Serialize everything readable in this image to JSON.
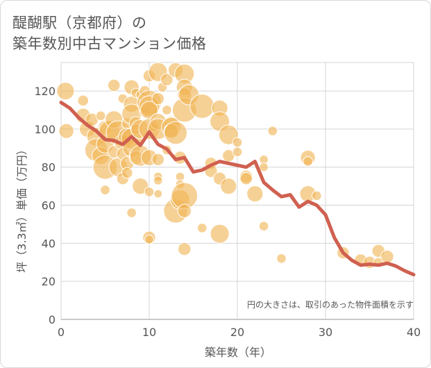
{
  "title": {
    "line1": "醍醐駅（京都府）の",
    "line2": "築年数別中古マンション価格"
  },
  "chart_data": {
    "type": "scatter",
    "xlabel": "築年数（年）",
    "ylabel": "坪（3.3㎡）単価（万円）",
    "xlim": [
      0,
      40
    ],
    "ylim": [
      0,
      135
    ],
    "xticks": [
      "0",
      "10",
      "20",
      "30",
      "40"
    ],
    "yticks": [
      "0",
      "20",
      "40",
      "60",
      "80",
      "100",
      "120"
    ],
    "grid": true,
    "note": "円の大きさは、取引のあった物件面積を示す",
    "colors": {
      "bubble": "#f0b455",
      "line": "#d06050"
    },
    "points": [
      {
        "x": 0.5,
        "y": 120,
        "s": 2
      },
      {
        "x": 0.6,
        "y": 99,
        "s": 1.6
      },
      {
        "x": 2.5,
        "y": 115,
        "s": 1
      },
      {
        "x": 2.5,
        "y": 107,
        "s": 1.6
      },
      {
        "x": 3,
        "y": 100,
        "s": 1.8
      },
      {
        "x": 3.5,
        "y": 105,
        "s": 1.3
      },
      {
        "x": 4,
        "y": 96,
        "s": 2.2
      },
      {
        "x": 4,
        "y": 89,
        "s": 2.8
      },
      {
        "x": 4.5,
        "y": 107,
        "s": 0.8
      },
      {
        "x": 4.5,
        "y": 86,
        "s": 2
      },
      {
        "x": 5,
        "y": 80,
        "s": 3
      },
      {
        "x": 5,
        "y": 68,
        "s": 0.8
      },
      {
        "x": 5,
        "y": 101,
        "s": 1.4
      },
      {
        "x": 5,
        "y": 92,
        "s": 2
      },
      {
        "x": 5.5,
        "y": 99,
        "s": 2.5
      },
      {
        "x": 6,
        "y": 123,
        "s": 1.2
      },
      {
        "x": 6,
        "y": 105,
        "s": 2
      },
      {
        "x": 6,
        "y": 88,
        "s": 1.2
      },
      {
        "x": 6.5,
        "y": 98,
        "s": 3
      },
      {
        "x": 6.5,
        "y": 80,
        "s": 2.2
      },
      {
        "x": 7,
        "y": 116,
        "s": 0.8
      },
      {
        "x": 7,
        "y": 93,
        "s": 1.8
      },
      {
        "x": 7,
        "y": 87,
        "s": 1.2
      },
      {
        "x": 7,
        "y": 74,
        "s": 1.2
      },
      {
        "x": 7.5,
        "y": 103,
        "s": 1
      },
      {
        "x": 7.5,
        "y": 96,
        "s": 2
      },
      {
        "x": 7.5,
        "y": 82,
        "s": 1.4
      },
      {
        "x": 7.5,
        "y": 77,
        "s": 1
      },
      {
        "x": 8,
        "y": 122,
        "s": 1.6
      },
      {
        "x": 8,
        "y": 113,
        "s": 1.8
      },
      {
        "x": 8,
        "y": 108,
        "s": 2.3
      },
      {
        "x": 8,
        "y": 95,
        "s": 2.5
      },
      {
        "x": 8,
        "y": 90,
        "s": 2
      },
      {
        "x": 8,
        "y": 56,
        "s": 0.8
      },
      {
        "x": 8.5,
        "y": 119,
        "s": 0.8
      },
      {
        "x": 8.5,
        "y": 103,
        "s": 1.4
      },
      {
        "x": 8.5,
        "y": 100,
        "s": 1
      },
      {
        "x": 8.5,
        "y": 85,
        "s": 1.4
      },
      {
        "x": 9,
        "y": 118,
        "s": 0.7
      },
      {
        "x": 9,
        "y": 100,
        "s": 2.2
      },
      {
        "x": 9,
        "y": 86,
        "s": 2.5
      },
      {
        "x": 9,
        "y": 70,
        "s": 1.8
      },
      {
        "x": 9.5,
        "y": 120,
        "s": 1
      },
      {
        "x": 9.5,
        "y": 109,
        "s": 1
      },
      {
        "x": 10,
        "y": 128,
        "s": 1.2
      },
      {
        "x": 10,
        "y": 114,
        "s": 3
      },
      {
        "x": 10,
        "y": 112,
        "s": 2.5
      },
      {
        "x": 10,
        "y": 110,
        "s": 2
      },
      {
        "x": 10,
        "y": 100,
        "s": 2.5
      },
      {
        "x": 10,
        "y": 85,
        "s": 1.8
      },
      {
        "x": 10,
        "y": 67,
        "s": 0.8
      },
      {
        "x": 10,
        "y": 43,
        "s": 1.3
      },
      {
        "x": 10,
        "y": 42,
        "s": 0.7
      },
      {
        "x": 10.5,
        "y": 101,
        "s": 0.8
      },
      {
        "x": 11,
        "y": 130,
        "s": 2.2
      },
      {
        "x": 11,
        "y": 116,
        "s": 1.2
      },
      {
        "x": 11,
        "y": 104,
        "s": 1.8
      },
      {
        "x": 11,
        "y": 100,
        "s": 2.5
      },
      {
        "x": 11,
        "y": 84,
        "s": 1.2
      },
      {
        "x": 11,
        "y": 75,
        "s": 0.7
      },
      {
        "x": 11,
        "y": 73,
        "s": 0.7
      },
      {
        "x": 11,
        "y": 66,
        "s": 0.6
      },
      {
        "x": 11.5,
        "y": 122,
        "s": 0.8
      },
      {
        "x": 12,
        "y": 126,
        "s": 1.2
      },
      {
        "x": 12,
        "y": 110,
        "s": 0.8
      },
      {
        "x": 12,
        "y": 89,
        "s": 0.8
      },
      {
        "x": 12.5,
        "y": 103,
        "s": 1.5
      },
      {
        "x": 12.5,
        "y": 101,
        "s": 2.3
      },
      {
        "x": 12.5,
        "y": 99,
        "s": 1.6
      },
      {
        "x": 13,
        "y": 131,
        "s": 1.6
      },
      {
        "x": 13,
        "y": 98,
        "s": 2.8
      },
      {
        "x": 13,
        "y": 57,
        "s": 3
      },
      {
        "x": 13.5,
        "y": 85,
        "s": 1.3
      },
      {
        "x": 13.5,
        "y": 75,
        "s": 0.7
      },
      {
        "x": 13.5,
        "y": 71,
        "s": 0.7
      },
      {
        "x": 13.5,
        "y": 63,
        "s": 2.3
      },
      {
        "x": 14,
        "y": 129,
        "s": 2.3
      },
      {
        "x": 14,
        "y": 122,
        "s": 1.8
      },
      {
        "x": 14,
        "y": 118,
        "s": 1.5
      },
      {
        "x": 14,
        "y": 110,
        "s": 3
      },
      {
        "x": 14,
        "y": 65,
        "s": 3.3
      },
      {
        "x": 14,
        "y": 57,
        "s": 1.4
      },
      {
        "x": 14,
        "y": 37,
        "s": 1.3
      },
      {
        "x": 14.5,
        "y": 118,
        "s": 2.4
      },
      {
        "x": 16,
        "y": 112,
        "s": 3
      },
      {
        "x": 16,
        "y": 48,
        "s": 0.8
      },
      {
        "x": 17,
        "y": 82,
        "s": 1.2
      },
      {
        "x": 17,
        "y": 78,
        "s": 1.3
      },
      {
        "x": 18,
        "y": 111,
        "s": 1.8
      },
      {
        "x": 18,
        "y": 104,
        "s": 2.3
      },
      {
        "x": 18,
        "y": 74,
        "s": 1.3
      },
      {
        "x": 18,
        "y": 45,
        "s": 2.2
      },
      {
        "x": 19,
        "y": 97,
        "s": 2.3
      },
      {
        "x": 19,
        "y": 86,
        "s": 1.2
      },
      {
        "x": 19,
        "y": 70,
        "s": 1.8
      },
      {
        "x": 20,
        "y": 93,
        "s": 0.8
      },
      {
        "x": 20,
        "y": 88,
        "s": 0.8
      },
      {
        "x": 21,
        "y": 75,
        "s": 1.3
      },
      {
        "x": 21,
        "y": 74,
        "s": 1.2
      },
      {
        "x": 22,
        "y": 66,
        "s": 1.8
      },
      {
        "x": 23,
        "y": 84,
        "s": 0.7
      },
      {
        "x": 23,
        "y": 80,
        "s": 0.7
      },
      {
        "x": 23,
        "y": 49,
        "s": 0.8
      },
      {
        "x": 24,
        "y": 99,
        "s": 0.8
      },
      {
        "x": 25,
        "y": 32,
        "s": 0.8
      },
      {
        "x": 28,
        "y": 85,
        "s": 1.6
      },
      {
        "x": 28,
        "y": 83,
        "s": 0.8
      },
      {
        "x": 28,
        "y": 66,
        "s": 1.8
      },
      {
        "x": 29,
        "y": 65,
        "s": 0.8
      },
      {
        "x": 32,
        "y": 35,
        "s": 1.2
      },
      {
        "x": 34,
        "y": 31,
        "s": 1.3
      },
      {
        "x": 35,
        "y": 30,
        "s": 1.2
      },
      {
        "x": 36,
        "y": 36,
        "s": 1.3
      },
      {
        "x": 36,
        "y": 30,
        "s": 0.8
      },
      {
        "x": 37,
        "y": 33,
        "s": 1.3
      }
    ],
    "trend": [
      [
        0,
        114
      ],
      [
        1,
        111
      ],
      [
        2,
        106
      ],
      [
        3,
        102
      ],
      [
        4,
        99
      ],
      [
        5,
        94.5
      ],
      [
        6,
        94
      ],
      [
        7,
        92
      ],
      [
        8,
        96
      ],
      [
        9,
        91.5
      ],
      [
        10,
        98.5
      ],
      [
        11,
        92
      ],
      [
        12,
        89.5
      ],
      [
        13,
        84
      ],
      [
        14,
        85
      ],
      [
        15,
        77.5
      ],
      [
        16,
        78.5
      ],
      [
        17,
        81
      ],
      [
        18,
        83
      ],
      [
        19,
        82
      ],
      [
        20,
        81
      ],
      [
        21,
        80
      ],
      [
        22,
        83
      ],
      [
        23,
        72
      ],
      [
        24,
        68
      ],
      [
        25,
        64.5
      ],
      [
        26,
        65.5
      ],
      [
        27,
        59
      ],
      [
        28,
        62
      ],
      [
        29,
        60
      ],
      [
        30,
        55
      ],
      [
        31,
        43
      ],
      [
        32,
        35
      ],
      [
        33,
        31
      ],
      [
        34,
        28.5
      ],
      [
        35,
        29
      ],
      [
        36,
        28.5
      ],
      [
        37,
        29.5
      ],
      [
        38,
        28
      ],
      [
        39,
        25.5
      ],
      [
        40,
        23.5
      ]
    ]
  }
}
